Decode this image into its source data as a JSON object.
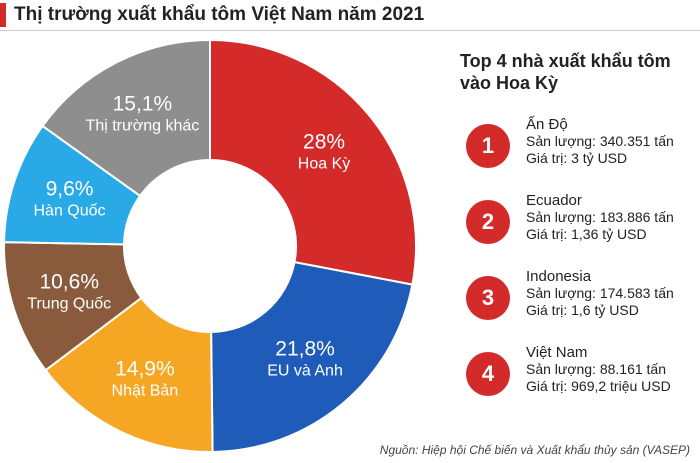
{
  "chart_data": {
    "type": "donut",
    "title": "Thị trường xuất khẩu tôm Việt Nam năm 2021",
    "categories": [
      "Hoa Kỳ",
      "EU và Anh",
      "Nhật Bản",
      "Trung Quốc",
      "Hàn Quốc",
      "Thị trường khác"
    ],
    "values": [
      28,
      21.8,
      14.9,
      10.6,
      9.6,
      15.1
    ],
    "value_labels": [
      "28%",
      "21,8%",
      "14,9%",
      "10,6%",
      "9,6%",
      "15,1%"
    ],
    "colors": [
      "#d42a2a",
      "#1f5bb8",
      "#f5a623",
      "#8a5a3c",
      "#29a9e6",
      "#8e8e8e"
    ],
    "source": "Nguồn: Hiệp hội Chế biến và Xuất khẩu thủy sản (VASEP)"
  },
  "panel": {
    "title": "Top 4 nhà xuất khẩu tôm vào Hoa Kỳ",
    "items": [
      {
        "rank": "1",
        "name": "Ấn Độ",
        "volume": "Sản lượng: 340.351 tấn",
        "value": "Giá trị: 3 tỷ USD"
      },
      {
        "rank": "2",
        "name": "Ecuador",
        "volume": "Sản lượng: 183.886 tấn",
        "value": "Giá trị: 1,36 tỷ USD"
      },
      {
        "rank": "3",
        "name": "Indonesia",
        "volume": "Sản lượng: 174.583 tấn",
        "value": "Giá trị: 1,6 tỷ USD"
      },
      {
        "rank": "4",
        "name": "Việt Nam",
        "volume": "Sản lượng: 88.161 tấn",
        "value": "Giá trị: 969,2 triệu USD"
      }
    ]
  }
}
